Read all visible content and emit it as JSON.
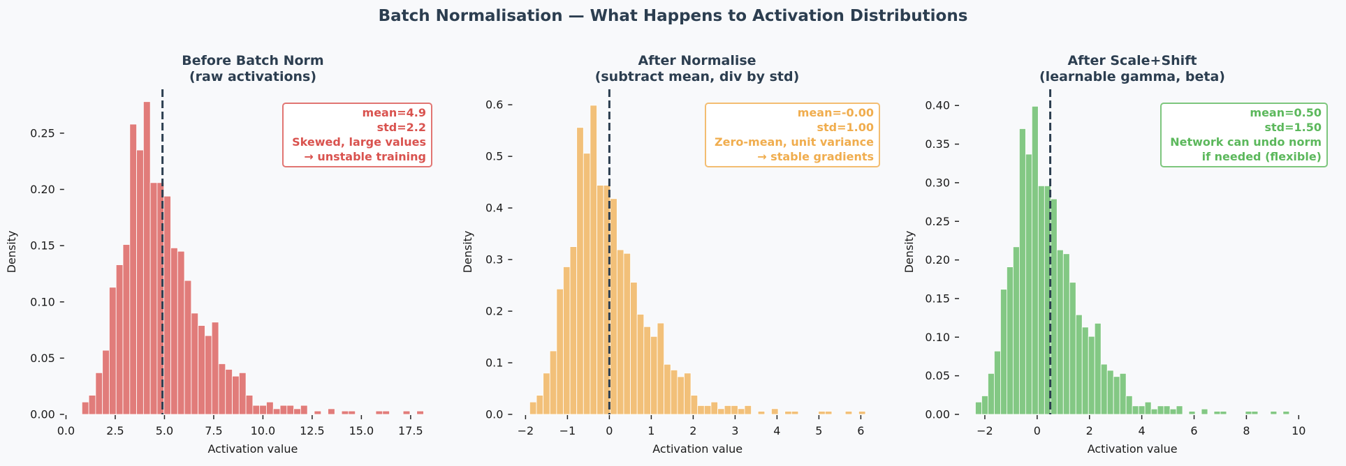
{
  "chart_data": {
    "title": "Batch Normalisation — What Happens to Activation Distributions",
    "panels": [
      {
        "type": "bar",
        "title_lines": [
          "Before Batch Norm",
          "(raw activations)"
        ],
        "xlabel": "Activation value",
        "ylabel": "Density",
        "color": "#d9534f",
        "bar_color": "#e17c7a",
        "xlim": [
          -0.06,
          19.03
        ],
        "ylim": [
          0,
          0.289
        ],
        "xticks": [
          0,
          2.5,
          5,
          7.5,
          10,
          12.5,
          15,
          17.5
        ],
        "xtick_labels": [
          "0.0",
          "2.5",
          "5.0",
          "7.5",
          "10.0",
          "12.5",
          "15.0",
          "17.5"
        ],
        "yticks": [
          0,
          0.05,
          0.1,
          0.15,
          0.2,
          0.25
        ],
        "ytick_labels": [
          "0.00",
          "0.05",
          "0.10",
          "0.15",
          "0.20",
          "0.25"
        ],
        "bin_start": 0.81,
        "bin_width": 0.347,
        "values": [
          0.011,
          0.017,
          0.037,
          0.057,
          0.113,
          0.133,
          0.151,
          0.258,
          0.235,
          0.278,
          0.206,
          0.206,
          0.194,
          0.148,
          0.145,
          0.119,
          0.09,
          0.079,
          0.07,
          0.082,
          0.045,
          0.04,
          0.034,
          0.037,
          0.017,
          0.008,
          0.008,
          0.011,
          0.005,
          0.008,
          0.008,
          0.005,
          0.008,
          0,
          0.003,
          0,
          0.005,
          0,
          0.003,
          0.003,
          0,
          0,
          0,
          0.003,
          0.003,
          0,
          0,
          0.003,
          0,
          0.003
        ],
        "mean_line": 4.9,
        "annotation": [
          "mean=4.9",
          "std=2.2",
          "Skewed, large values",
          "→ unstable training"
        ]
      },
      {
        "type": "bar",
        "title_lines": [
          "After Normalise",
          "(subtract mean, div by std)"
        ],
        "xlabel": "Activation value",
        "ylabel": "Density",
        "color": "#f0ad4e",
        "bar_color": "#f2c079",
        "xlim": [
          -2.3,
          6.51
        ],
        "ylim": [
          0,
          0.63
        ],
        "xticks": [
          -2,
          -1,
          0,
          1,
          2,
          3,
          4,
          5,
          6
        ],
        "xtick_labels": [
          "−2",
          "−1",
          "0",
          "1",
          "2",
          "3",
          "4",
          "5",
          "6"
        ],
        "yticks": [
          0,
          0.1,
          0.2,
          0.3,
          0.4,
          0.5,
          0.6
        ],
        "ytick_labels": [
          "0.0",
          "0.1",
          "0.2",
          "0.3",
          "0.4",
          "0.5",
          "0.6"
        ],
        "bin_start": -1.9,
        "bin_width": 0.1602,
        "values": [
          0.024,
          0.037,
          0.08,
          0.123,
          0.243,
          0.286,
          0.325,
          0.556,
          0.506,
          0.599,
          0.444,
          0.444,
          0.418,
          0.319,
          0.312,
          0.256,
          0.194,
          0.17,
          0.151,
          0.177,
          0.097,
          0.086,
          0.073,
          0.08,
          0.037,
          0.017,
          0.017,
          0.024,
          0.011,
          0.017,
          0.017,
          0.011,
          0.017,
          0,
          0.006,
          0,
          0.011,
          0,
          0.006,
          0.006,
          0,
          0,
          0,
          0.006,
          0.006,
          0,
          0,
          0.006,
          0,
          0.006
        ],
        "mean_line": 0.0,
        "annotation": [
          "mean=-0.00",
          "std=1.00",
          "Zero-mean, unit variance",
          "→ stable gradients"
        ]
      },
      {
        "type": "bar",
        "title_lines": [
          "After Scale+Shift",
          "(learnable gamma, beta)"
        ],
        "xlabel": "Activation value",
        "ylabel": "Density",
        "color": "#5cb85c",
        "bar_color": "#83c884",
        "xlim": [
          -2.96,
          10.24
        ],
        "ylim": [
          0,
          0.421
        ],
        "xticks": [
          -2,
          0,
          2,
          4,
          6,
          8,
          10
        ],
        "xtick_labels": [
          "−2",
          "0",
          "2",
          "4",
          "6",
          "8",
          "10"
        ],
        "yticks": [
          0,
          0.05,
          0.1,
          0.15,
          0.2,
          0.25,
          0.3,
          0.35,
          0.4
        ],
        "ytick_labels": [
          "0.00",
          "0.05",
          "0.10",
          "0.15",
          "0.20",
          "0.25",
          "0.30",
          "0.35",
          "0.40"
        ],
        "bin_start": -2.36,
        "bin_width": 0.24,
        "values": [
          0.016,
          0.024,
          0.053,
          0.082,
          0.162,
          0.191,
          0.217,
          0.37,
          0.337,
          0.399,
          0.296,
          0.296,
          0.279,
          0.213,
          0.208,
          0.171,
          0.129,
          0.113,
          0.101,
          0.118,
          0.065,
          0.057,
          0.049,
          0.053,
          0.024,
          0.011,
          0.011,
          0.016,
          0.007,
          0.011,
          0.011,
          0.007,
          0.011,
          0,
          0.004,
          0,
          0.007,
          0,
          0.004,
          0.004,
          0,
          0,
          0,
          0.004,
          0.004,
          0,
          0,
          0.004,
          0,
          0.004
        ],
        "mean_line": 0.5,
        "annotation": [
          "mean=0.50",
          "std=1.50",
          "Network can undo norm",
          "if needed (flexible)"
        ]
      }
    ],
    "grid": false,
    "mean_line_color": "#2c3e50",
    "background": "#f8f9fb"
  }
}
